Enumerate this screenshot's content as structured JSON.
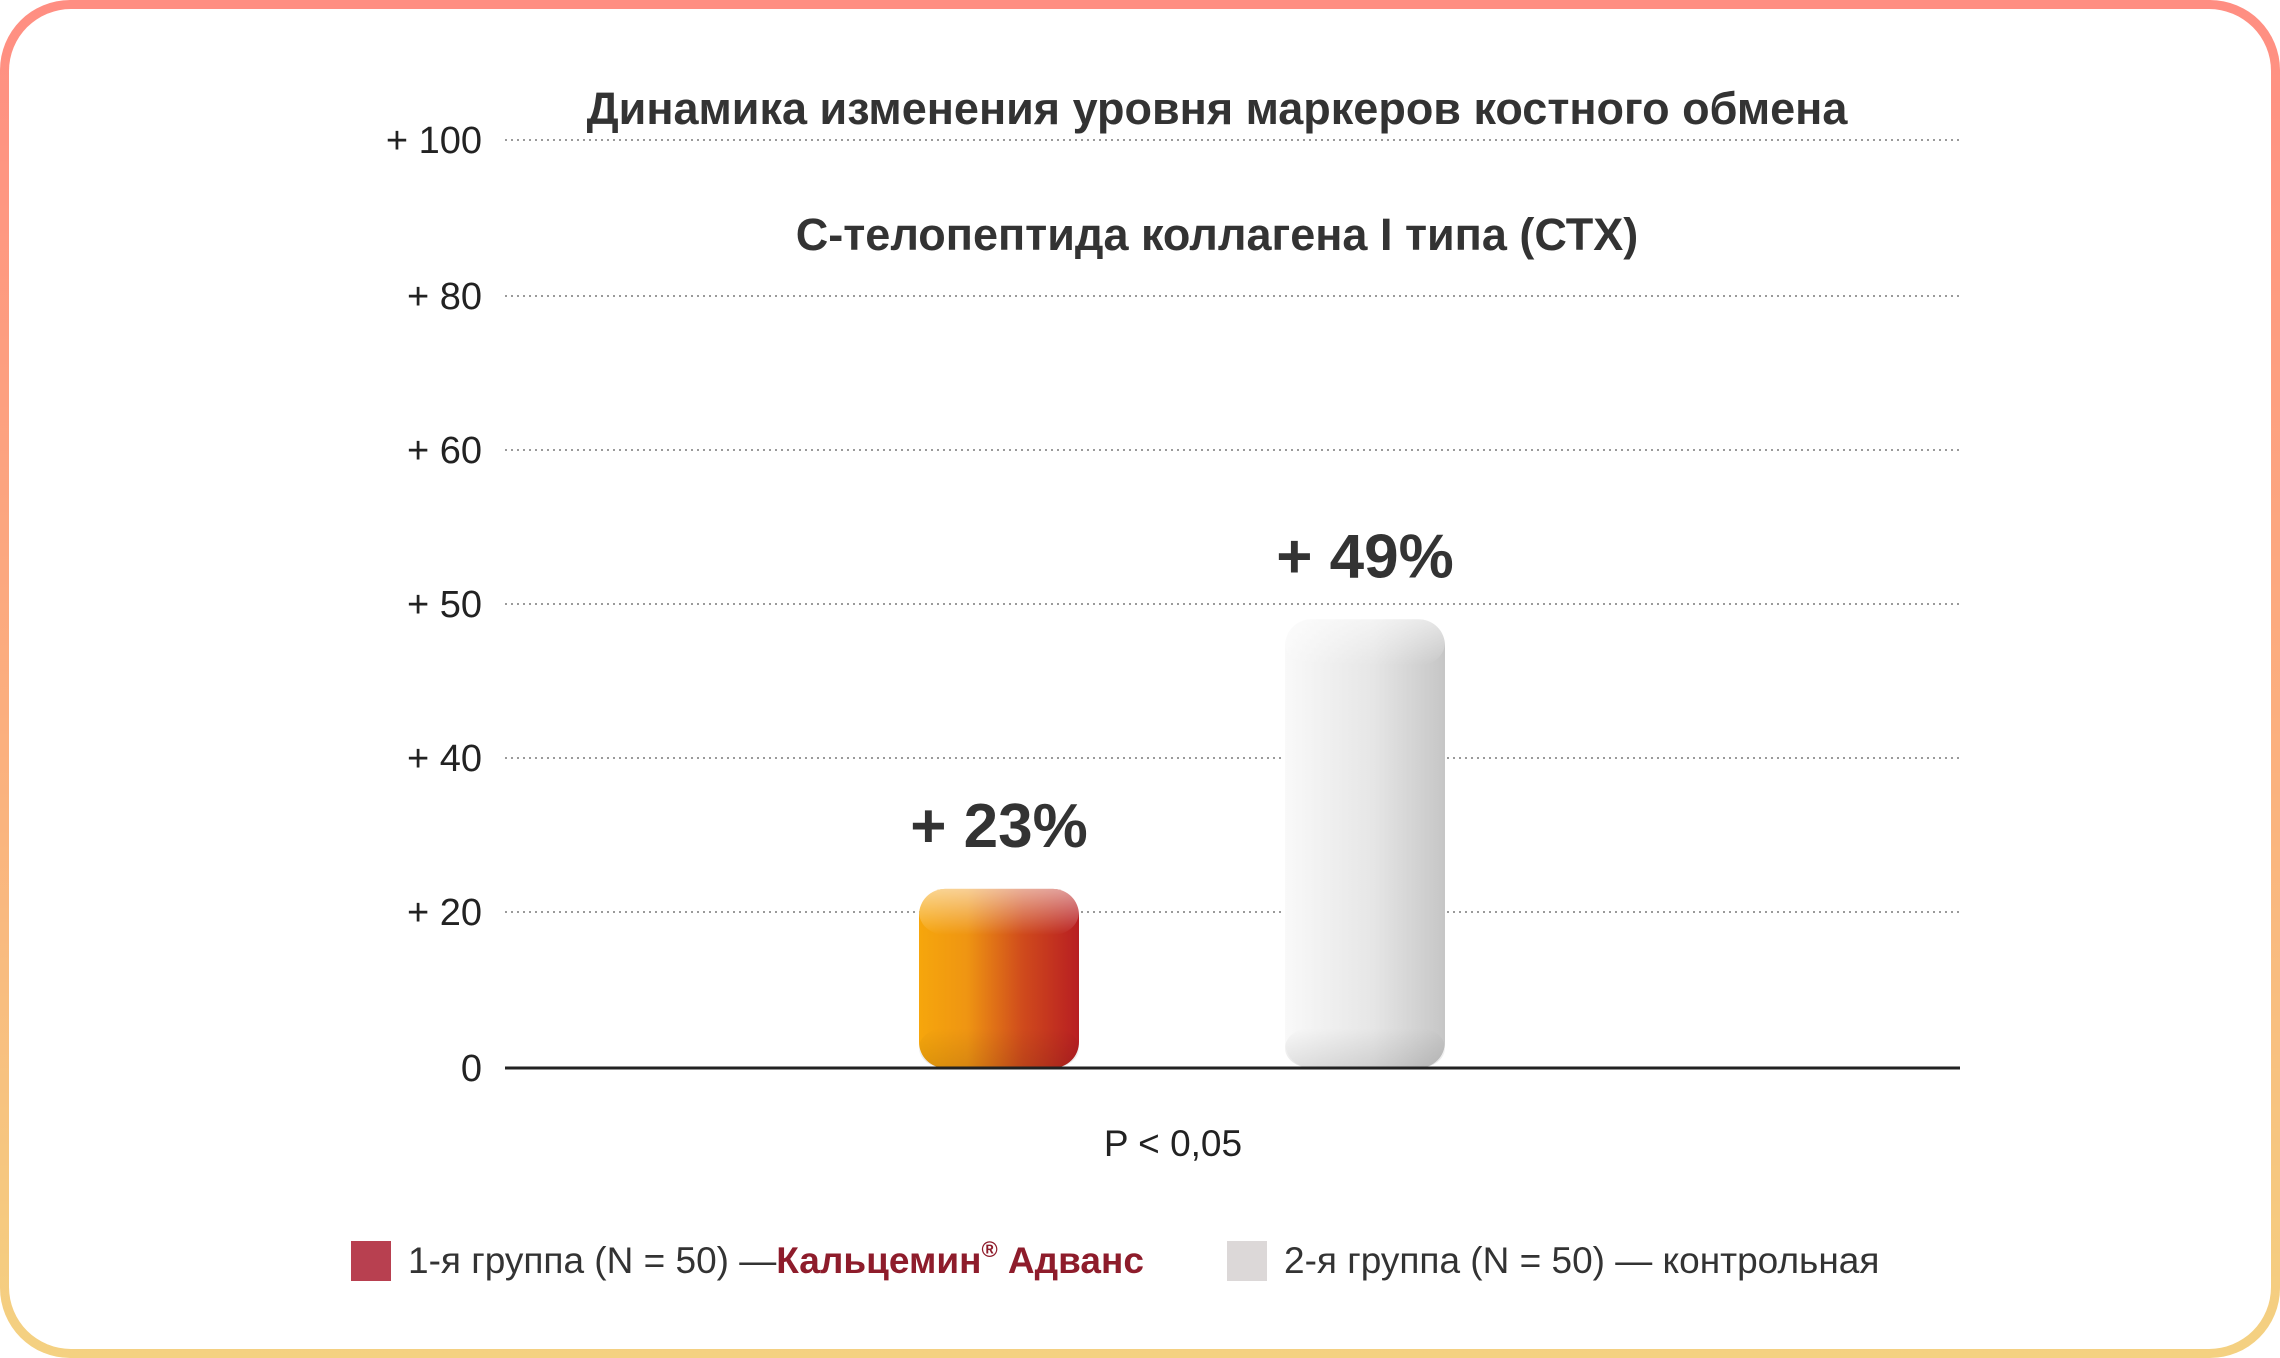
{
  "chart_data": {
    "type": "bar",
    "title": "Динамика изменения уровня маркеров костного обмена",
    "subtitle": "С-телопептида коллагена I типа (СТХ)",
    "yticks": [
      {
        "value": 0,
        "label": "0"
      },
      {
        "value": 20,
        "label": "+ 20"
      },
      {
        "value": 40,
        "label": "+ 40"
      },
      {
        "value": 50,
        "label": "+ 50"
      },
      {
        "value": 60,
        "label": "+ 60"
      },
      {
        "value": 80,
        "label": "+ 80"
      },
      {
        "value": 100,
        "label": "+ 100"
      }
    ],
    "ylim": [
      0,
      100
    ],
    "grid": true,
    "bars": [
      {
        "value": 23,
        "label": "+ 23%",
        "color_start": "#f6a10c",
        "color_end": "#b82020"
      },
      {
        "value": 49,
        "label": "+ 49%",
        "color_start": "#f6f6f6",
        "color_end": "#c8c8c8"
      }
    ],
    "note": "P < 0,05"
  },
  "legend": {
    "group1": {
      "prefix": "1-я группа (N = 50) — ",
      "brand": "Кальцемин",
      "reg": "®",
      "brand_suffix": " Адванс",
      "color": "#b84050"
    },
    "group2": {
      "text": "2-я группа (N = 50) — контрольная",
      "color": "#dcd8d8"
    }
  }
}
